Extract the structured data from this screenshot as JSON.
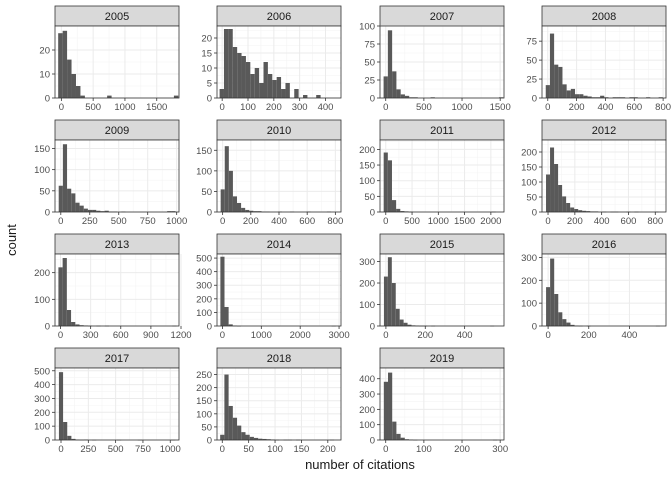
{
  "figure": {
    "xlabel": "number of citations",
    "ylabel": "count",
    "colors": {
      "bar": "#595959",
      "strip": "#d9d9d9",
      "strip_border": "#333333",
      "grid_major": "#ebebeb",
      "grid_minor": "#f4f4f4",
      "panel_border": "#333333",
      "text": "#1a1a1a",
      "tick_text": "#4d4d4d"
    }
  },
  "chart_data": [
    {
      "type": "bar",
      "title": "2005",
      "xlim": [
        -100,
        1850
      ],
      "ylim": [
        0,
        30
      ],
      "xticks": [
        0,
        500,
        1000,
        1500
      ],
      "xtick_labels": [
        "0",
        "500",
        "1000",
        "1500"
      ],
      "yticks": [
        0,
        10,
        20
      ],
      "ytick_labels": [
        "0",
        "10",
        "20"
      ],
      "bin_start": -50,
      "bin_width": 70,
      "values": [
        27,
        28,
        16,
        10,
        5,
        1,
        0,
        0,
        0,
        0,
        0,
        1,
        0,
        0,
        0,
        0,
        0,
        0,
        0,
        0,
        0,
        0,
        0,
        0,
        0,
        0,
        1
      ]
    },
    {
      "type": "bar",
      "title": "2006",
      "xlim": [
        -20,
        460
      ],
      "ylim": [
        0,
        24
      ],
      "xticks": [
        0,
        100,
        200,
        300,
        400
      ],
      "xtick_labels": [
        "0",
        "100",
        "200",
        "300",
        "400"
      ],
      "yticks": [
        0,
        5,
        10,
        15,
        20
      ],
      "ytick_labels": [
        "0",
        "5",
        "10",
        "15",
        "20"
      ],
      "bin_start": -10,
      "bin_width": 17,
      "values": [
        3,
        23,
        23,
        17,
        15,
        14,
        12,
        8,
        10,
        5,
        12,
        8,
        6,
        7,
        3,
        5,
        0,
        3,
        0,
        1,
        0,
        0,
        1,
        0,
        0,
        0,
        0,
        0,
        0,
        0,
        0,
        0,
        0,
        0,
        0,
        0,
        0
      ]
    },
    {
      "type": "bar",
      "title": "2007",
      "xlim": [
        -75,
        1550
      ],
      "ylim": [
        0,
        100
      ],
      "xticks": [
        0,
        500,
        1000,
        1500
      ],
      "xtick_labels": [
        "0",
        "500",
        "1000",
        "1500"
      ],
      "yticks": [
        0,
        25,
        50,
        75,
        100
      ],
      "ytick_labels": [
        "0",
        "25",
        "50",
        "75",
        "100"
      ],
      "bin_start": -28,
      "bin_width": 56,
      "values": [
        30,
        94,
        37,
        12,
        5,
        3,
        1,
        1,
        0,
        0,
        0,
        1,
        0,
        0,
        0,
        0,
        0,
        0,
        0,
        0,
        0,
        0,
        0,
        0,
        0,
        0,
        0,
        1
      ]
    },
    {
      "type": "bar",
      "title": "2008",
      "xlim": [
        -40,
        820
      ],
      "ylim": [
        0,
        95
      ],
      "xticks": [
        0,
        200,
        400,
        600,
        800
      ],
      "xtick_labels": [
        "0",
        "200",
        "400",
        "600",
        "800"
      ],
      "yticks": [
        0,
        25,
        50,
        75
      ],
      "ytick_labels": [
        "0",
        "25",
        "50",
        "75"
      ],
      "bin_start": -14,
      "bin_width": 29,
      "values": [
        17,
        85,
        44,
        41,
        18,
        10,
        12,
        5,
        5,
        3,
        2,
        1,
        1,
        3,
        1,
        0,
        1,
        1,
        1,
        0,
        1,
        1,
        0,
        0,
        1,
        0,
        0,
        1
      ]
    },
    {
      "type": "bar",
      "title": "2009",
      "xlim": [
        -50,
        1020
      ],
      "ylim": [
        0,
        170
      ],
      "xticks": [
        0,
        250,
        500,
        750,
        1000
      ],
      "xtick_labels": [
        "0",
        "250",
        "500",
        "750",
        "1000"
      ],
      "yticks": [
        0,
        50,
        100,
        150
      ],
      "ytick_labels": [
        "0",
        "50",
        "100",
        "150"
      ],
      "bin_start": -18,
      "bin_width": 36,
      "values": [
        62,
        160,
        55,
        44,
        22,
        15,
        8,
        5,
        5,
        3,
        2,
        3,
        1,
        1,
        0,
        1,
        0,
        0,
        0,
        0,
        0,
        0,
        0,
        0,
        0,
        0,
        2,
        2
      ]
    },
    {
      "type": "bar",
      "title": "2010",
      "xlim": [
        -40,
        840
      ],
      "ylim": [
        0,
        175
      ],
      "xticks": [
        0,
        200,
        400,
        600,
        800
      ],
      "xtick_labels": [
        "0",
        "200",
        "400",
        "600",
        "800"
      ],
      "yticks": [
        0,
        50,
        100,
        150
      ],
      "ytick_labels": [
        "0",
        "50",
        "100",
        "150"
      ],
      "bin_start": -14,
      "bin_width": 29,
      "values": [
        55,
        160,
        100,
        38,
        22,
        10,
        5,
        3,
        2,
        2,
        1,
        1,
        0,
        0,
        1,
        0,
        0,
        1,
        0,
        0,
        0,
        1,
        0,
        0,
        0,
        0,
        1
      ]
    },
    {
      "type": "bar",
      "title": "2011",
      "xlim": [
        -110,
        2250
      ],
      "ylim": [
        0,
        230
      ],
      "xticks": [
        0,
        500,
        1000,
        1500,
        2000
      ],
      "xtick_labels": [
        "0",
        "500",
        "1000",
        "1500",
        "2000"
      ],
      "yticks": [
        0,
        50,
        100,
        150,
        200
      ],
      "ytick_labels": [
        "0",
        "50",
        "100",
        "150",
        "200"
      ],
      "bin_start": -40,
      "bin_width": 79,
      "values": [
        190,
        165,
        38,
        10,
        3,
        2,
        1,
        0,
        0,
        0,
        0,
        0,
        0,
        0,
        0,
        0,
        0,
        0,
        0,
        0,
        0,
        0,
        0,
        0,
        0,
        0,
        1
      ]
    },
    {
      "type": "bar",
      "title": "2012",
      "xlim": [
        -45,
        880
      ],
      "ylim": [
        0,
        240
      ],
      "xticks": [
        0,
        200,
        400,
        600,
        800
      ],
      "xtick_labels": [
        "0",
        "200",
        "400",
        "600",
        "800"
      ],
      "yticks": [
        0,
        50,
        100,
        150,
        200
      ],
      "ytick_labels": [
        "0",
        "50",
        "100",
        "150",
        "200"
      ],
      "bin_start": -15,
      "bin_width": 30,
      "values": [
        125,
        215,
        160,
        90,
        52,
        30,
        15,
        10,
        6,
        4,
        3,
        2,
        2,
        0,
        1,
        0,
        1,
        1,
        0,
        0,
        1,
        0,
        1,
        0,
        0,
        0,
        0,
        1
      ]
    },
    {
      "type": "bar",
      "title": "2013",
      "xlim": [
        -55,
        1180
      ],
      "ylim": [
        0,
        270
      ],
      "xticks": [
        0,
        300,
        600,
        900,
        1200
      ],
      "xtick_labels": [
        "0",
        "300",
        "600",
        "900",
        "1200"
      ],
      "yticks": [
        0,
        100,
        200
      ],
      "ytick_labels": [
        "0",
        "100",
        "200"
      ],
      "bin_start": -21,
      "bin_width": 42,
      "values": [
        220,
        255,
        60,
        15,
        6,
        3,
        2,
        1,
        0,
        1,
        0,
        1,
        0,
        0,
        0,
        0,
        0,
        0,
        0,
        0,
        0,
        0,
        0,
        0,
        0,
        0,
        0,
        1
      ]
    },
    {
      "type": "bar",
      "title": "2014",
      "xlim": [
        -140,
        3050
      ],
      "ylim": [
        0,
        530
      ],
      "xticks": [
        0,
        1000,
        2000,
        3000
      ],
      "xtick_labels": [
        "0",
        "1000",
        "2000",
        "3000"
      ],
      "yticks": [
        0,
        100,
        200,
        300,
        400,
        500
      ],
      "ytick_labels": [
        "0",
        "100",
        "200",
        "300",
        "400",
        "500"
      ],
      "bin_start": -53,
      "bin_width": 106,
      "values": [
        510,
        140,
        12,
        3,
        1,
        0,
        0,
        0,
        0,
        0,
        0,
        0,
        0,
        0,
        0,
        0,
        0,
        0,
        0,
        0,
        0,
        0,
        0,
        0,
        0,
        0,
        0,
        1
      ]
    },
    {
      "type": "bar",
      "title": "2015",
      "xlim": [
        -30,
        600
      ],
      "ylim": [
        0,
        335
      ],
      "xticks": [
        0,
        200,
        400
      ],
      "xtick_labels": [
        "0",
        "200",
        "400"
      ],
      "yticks": [
        0,
        100,
        200,
        300
      ],
      "ytick_labels": [
        "0",
        "100",
        "200",
        "300"
      ],
      "bin_start": -10,
      "bin_width": 20,
      "values": [
        230,
        320,
        200,
        80,
        30,
        15,
        6,
        3,
        2,
        1,
        1,
        0,
        1,
        0,
        0,
        0,
        0,
        0,
        0,
        0,
        0,
        0,
        0,
        0,
        0,
        0,
        0,
        1
      ]
    },
    {
      "type": "bar",
      "title": "2016",
      "xlim": [
        -30,
        580
      ],
      "ylim": [
        0,
        315
      ],
      "xticks": [
        0,
        200,
        400
      ],
      "xtick_labels": [
        "0",
        "200",
        "400"
      ],
      "yticks": [
        0,
        100,
        200,
        300
      ],
      "ytick_labels": [
        "0",
        "100",
        "200",
        "300"
      ],
      "bin_start": -10,
      "bin_width": 20,
      "values": [
        170,
        295,
        140,
        60,
        30,
        15,
        5,
        2,
        1,
        0,
        1,
        0,
        0,
        0,
        0,
        0,
        0,
        0,
        0,
        0,
        0,
        0,
        0,
        0,
        0,
        0,
        0,
        1
      ]
    },
    {
      "type": "bar",
      "title": "2017",
      "xlim": [
        -55,
        1080
      ],
      "ylim": [
        0,
        520
      ],
      "xticks": [
        0,
        250,
        500,
        750,
        1000
      ],
      "xtick_labels": [
        "0",
        "250",
        "500",
        "750",
        "1000"
      ],
      "yticks": [
        0,
        100,
        200,
        300,
        400,
        500
      ],
      "ytick_labels": [
        "0",
        "100",
        "200",
        "300",
        "400",
        "500"
      ],
      "bin_start": -19,
      "bin_width": 38,
      "values": [
        490,
        130,
        30,
        8,
        3,
        2,
        3,
        0,
        1,
        0,
        0,
        0,
        0,
        0,
        1,
        0,
        0,
        0,
        0,
        1,
        0,
        0,
        0,
        0,
        0,
        0,
        0,
        1
      ]
    },
    {
      "type": "bar",
      "title": "2018",
      "xlim": [
        -10,
        225
      ],
      "ylim": [
        0,
        275
      ],
      "xticks": [
        0,
        50,
        100,
        150,
        200
      ],
      "xtick_labels": [
        "0",
        "50",
        "100",
        "150",
        "200"
      ],
      "yticks": [
        0,
        50,
        100,
        150,
        200,
        250
      ],
      "ytick_labels": [
        "0",
        "50",
        "100",
        "150",
        "200",
        "250"
      ],
      "bin_start": -4,
      "bin_width": 8,
      "values": [
        20,
        250,
        130,
        85,
        55,
        30,
        20,
        12,
        8,
        5,
        4,
        3,
        2,
        1,
        0,
        1,
        1,
        0,
        1,
        0,
        0,
        0,
        0,
        0,
        0,
        0,
        1
      ]
    },
    {
      "type": "bar",
      "title": "2019",
      "xlim": [
        -15,
        310
      ],
      "ylim": [
        0,
        470
      ],
      "xticks": [
        0,
        100,
        200,
        300
      ],
      "xtick_labels": [
        "0",
        "100",
        "200",
        "300"
      ],
      "yticks": [
        0,
        100,
        200,
        300,
        400
      ],
      "ytick_labels": [
        "0",
        "100",
        "200",
        "300",
        "400"
      ],
      "bin_start": -5,
      "bin_width": 11,
      "values": [
        380,
        440,
        120,
        40,
        15,
        5,
        3,
        1,
        0,
        0,
        0,
        0,
        0,
        0,
        0,
        0,
        0,
        0,
        0,
        0,
        0,
        0,
        0,
        0,
        0,
        0,
        1
      ]
    }
  ]
}
